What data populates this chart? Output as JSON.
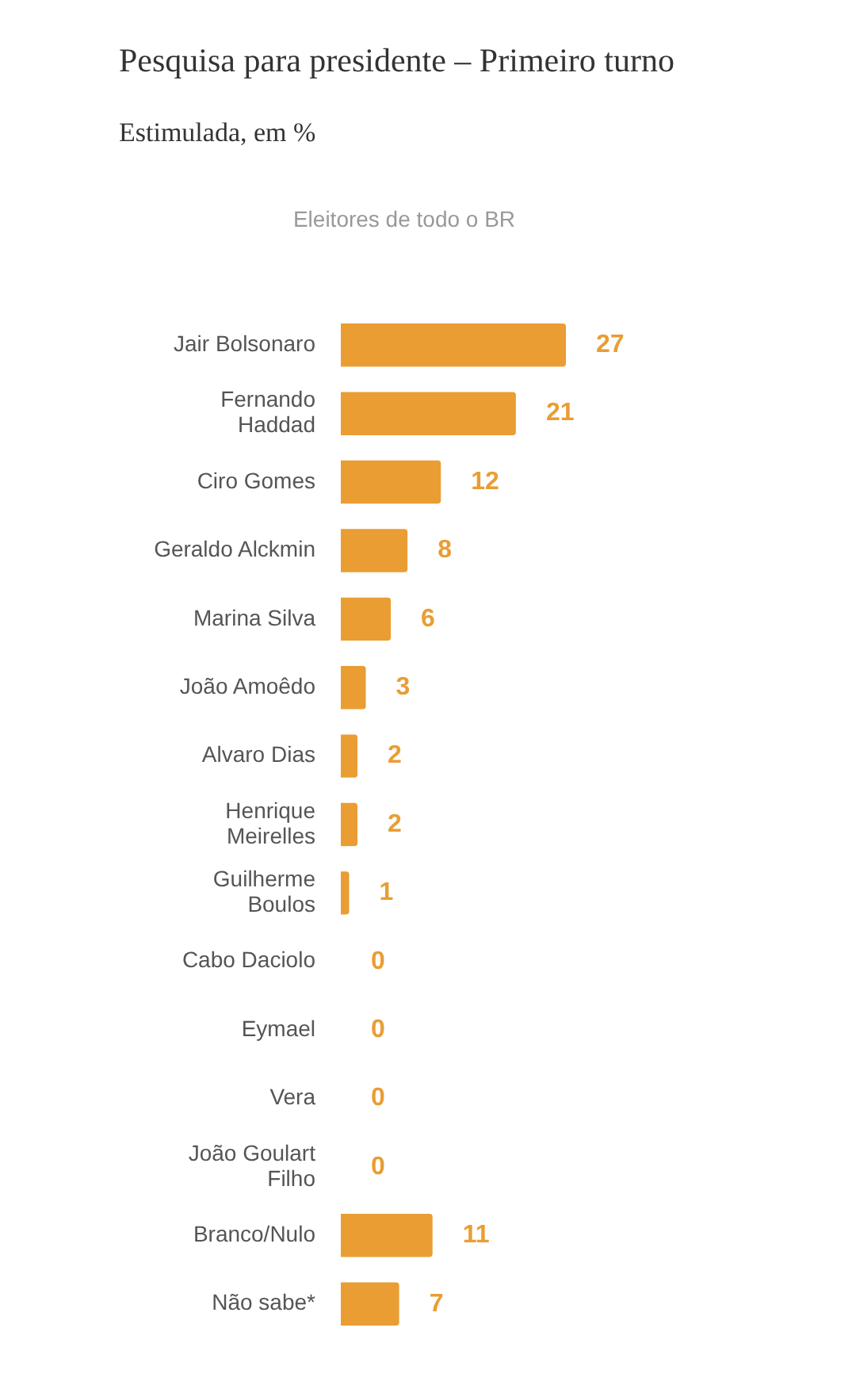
{
  "chart_data": {
    "type": "bar",
    "orientation": "horizontal",
    "title": "Pesquisa para presidente – Primeiro turno",
    "subtitle": "Estimulada, em %",
    "annotations": [
      "Eleitores de todo o BR"
    ],
    "categories": [
      "Jair Bolsonaro",
      "Fernando Haddad",
      "Ciro Gomes",
      "Geraldo Alckmin",
      "Marina Silva",
      "João Amoêdo",
      "Alvaro Dias",
      "Henrique Meirelles",
      "Guilherme Boulos",
      "Cabo Daciolo",
      "Eymael",
      "Vera",
      "João Goulart Filho",
      "Branco/Nulo",
      "Não sabe*"
    ],
    "values": [
      27,
      21,
      12,
      8,
      6,
      3,
      2,
      2,
      1,
      0,
      0,
      0,
      0,
      11,
      7
    ],
    "color": "#e99d33",
    "data_labels": true,
    "tick_labels": "y"
  }
}
